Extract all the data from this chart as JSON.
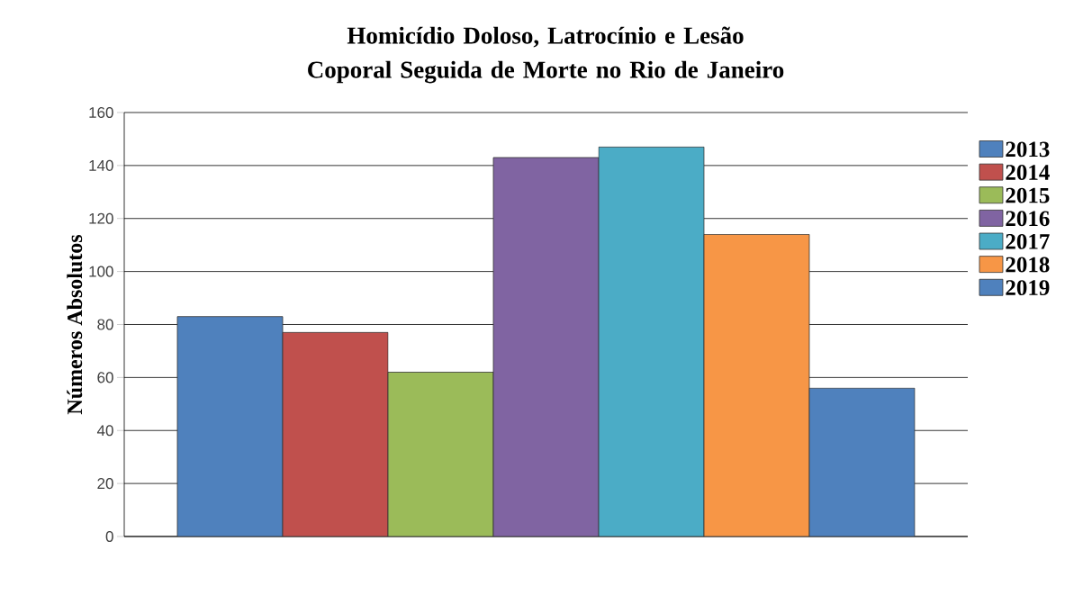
{
  "chart_data": {
    "type": "bar",
    "title": "Homicídio Doloso, Latrocínio e Lesão Coporal Seguida de Morte no Rio de Janeiro",
    "ylabel": "Números Absolutos",
    "categories": [
      null
    ],
    "series": [
      {
        "name": "2013",
        "color": "#4f81bd",
        "values": [
          83
        ]
      },
      {
        "name": "2014",
        "color": "#c0504d",
        "values": [
          77
        ]
      },
      {
        "name": "2015",
        "color": "#9bbb59",
        "values": [
          62
        ]
      },
      {
        "name": "2016",
        "color": "#8064a2",
        "values": [
          143
        ]
      },
      {
        "name": "2017",
        "color": "#4bacc6",
        "values": [
          147
        ]
      },
      {
        "name": "2018",
        "color": "#f79646",
        "values": [
          114
        ]
      },
      {
        "name": "2019",
        "color": "#4f81bd",
        "values": [
          56
        ]
      }
    ],
    "ylim": [
      0,
      160
    ],
    "yticks": [
      0,
      20,
      40,
      60,
      80,
      100,
      120,
      140,
      160
    ],
    "grid": "y",
    "legend": "right",
    "tick_labels": "y"
  }
}
